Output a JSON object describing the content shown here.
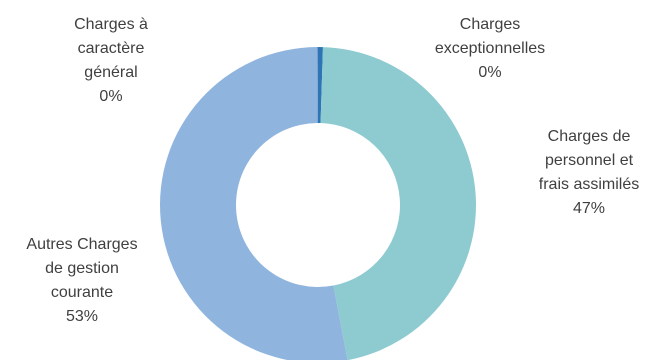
{
  "chart_data": {
    "type": "pie",
    "donut": true,
    "slices": [
      {
        "label_lines": [
          "Charges",
          "exceptionnelles"
        ],
        "pct_text": "0%",
        "value": 0.5,
        "color": "#2e75b6"
      },
      {
        "label_lines": [
          "Charges de",
          "personnel et",
          "frais assimilés"
        ],
        "pct_text": "47%",
        "value": 46.5,
        "color": "#8ecbd1"
      },
      {
        "label_lines": [
          "Autres Charges",
          "de gestion",
          "courante"
        ],
        "pct_text": "53%",
        "value": 52.9,
        "color": "#8fb5de"
      },
      {
        "label_lines": [
          "Charges à",
          "caractère",
          "général"
        ],
        "pct_text": "0%",
        "value": 0.1,
        "color": "#6e99cb"
      }
    ]
  }
}
